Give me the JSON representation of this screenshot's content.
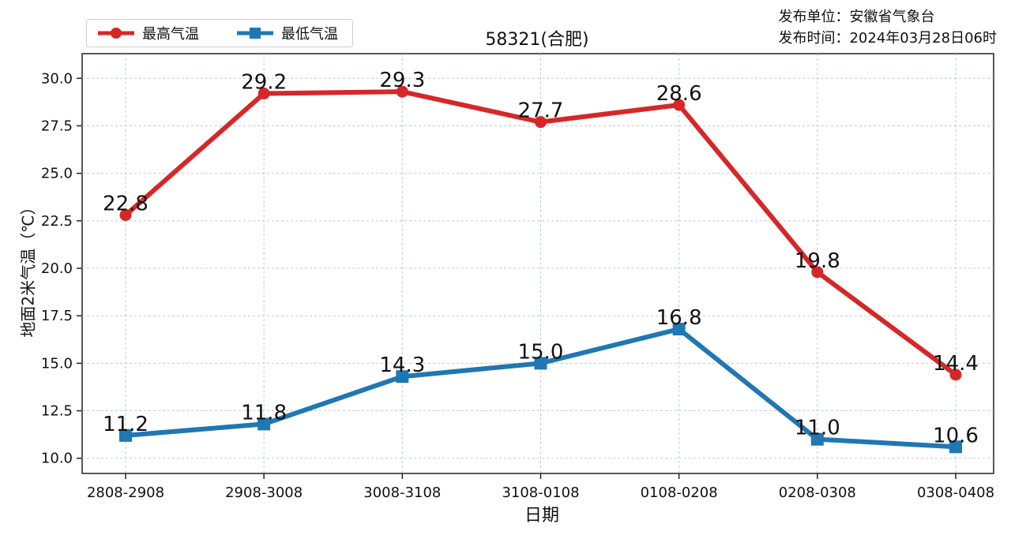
{
  "chart_data": {
    "type": "line",
    "title": "58321(合肥)",
    "issuer_lines": [
      "发布单位：安徽省气象台",
      "发布时间：2024年03月28日06时"
    ],
    "xlabel": "日期",
    "ylabel": "地面2米气温（℃）",
    "categories": [
      "2808-2908",
      "2908-3008",
      "3008-3108",
      "3108-0108",
      "0108-0208",
      "0208-0308",
      "0308-0408"
    ],
    "series": [
      {
        "name": "最高气温",
        "color": "#d62728",
        "marker": "circle",
        "values": [
          22.8,
          29.2,
          29.3,
          27.7,
          28.6,
          19.8,
          14.4
        ],
        "labels": [
          "22.8",
          "29.2",
          "29.3",
          "27.7",
          "28.6",
          "19.8",
          "14.4"
        ]
      },
      {
        "name": "最低气温",
        "color": "#1f77b4",
        "marker": "square",
        "values": [
          11.2,
          11.8,
          14.3,
          15.0,
          16.8,
          11.0,
          10.6
        ],
        "labels": [
          "11.2",
          "11.8",
          "14.3",
          "15.0",
          "16.8",
          "11.0",
          "10.6"
        ]
      }
    ],
    "yticks": [
      "10.0",
      "12.5",
      "15.0",
      "17.5",
      "20.0",
      "22.5",
      "25.0",
      "27.5",
      "30.0"
    ],
    "ytick_values": [
      10.0,
      12.5,
      15.0,
      17.5,
      20.0,
      22.5,
      25.0,
      27.5,
      30.0
    ],
    "ylim": [
      9.2,
      31.3
    ],
    "grid": true,
    "legend_position": "top-left"
  }
}
